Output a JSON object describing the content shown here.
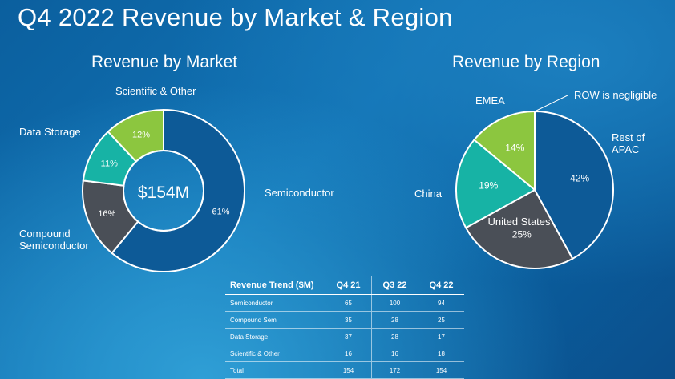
{
  "title": "Q4 2022 Revenue by Market & Region",
  "chart_data": [
    {
      "type": "pie",
      "variant": "donut",
      "title": "Revenue by Market",
      "center_label": "$154M",
      "categories": [
        "Semiconductor",
        "Compound Semiconductor",
        "Data Storage",
        "Scientific & Other"
      ],
      "values": [
        61,
        16,
        11,
        12
      ],
      "value_labels": [
        "61%",
        "16%",
        "11%",
        "12%"
      ],
      "colors": [
        "#0d5a97",
        "#4a4f57",
        "#17b3a5",
        "#8cc63f"
      ]
    },
    {
      "type": "pie",
      "title": "Revenue by Region",
      "categories": [
        "Rest of APAC",
        "United States",
        "China",
        "EMEA"
      ],
      "values": [
        42,
        25,
        19,
        14
      ],
      "value_labels": [
        "42%",
        "25%",
        "19%",
        "14%"
      ],
      "colors": [
        "#0d5a97",
        "#4a4f57",
        "#17b3a5",
        "#8cc63f"
      ],
      "annotation": "ROW is negligible"
    },
    {
      "type": "table",
      "columns": [
        "Revenue Trend ($M)",
        "Q4 21",
        "Q3 22",
        "Q4 22"
      ],
      "rows": [
        [
          "Semiconductor",
          "65",
          "100",
          "94"
        ],
        [
          "Compound Semi",
          "35",
          "28",
          "25"
        ],
        [
          "Data Storage",
          "37",
          "28",
          "17"
        ],
        [
          "Scientific & Other",
          "16",
          "16",
          "18"
        ],
        [
          "Total",
          "154",
          "172",
          "154"
        ]
      ]
    }
  ]
}
